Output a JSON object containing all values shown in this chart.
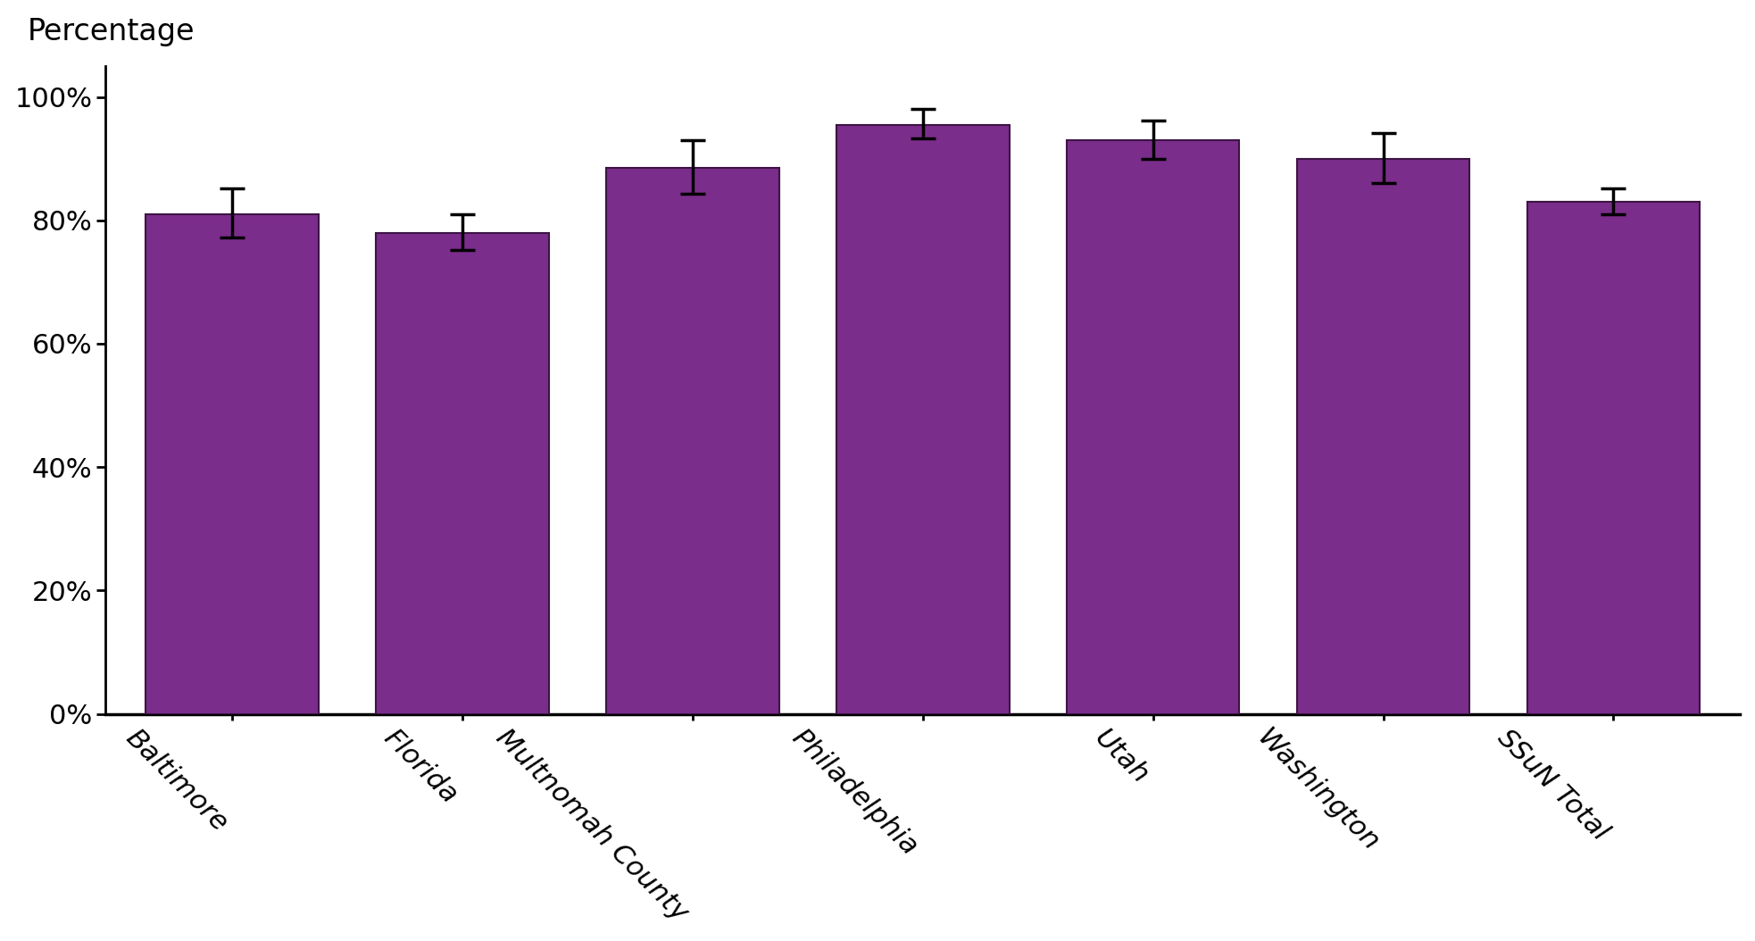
{
  "categories": [
    "Baltimore",
    "Florida",
    "Multnomah County",
    "Philadelphia",
    "Utah",
    "Washington",
    "SSuN Total"
  ],
  "values": [
    0.81,
    0.78,
    0.885,
    0.955,
    0.93,
    0.9,
    0.83
  ],
  "errors_low": [
    0.038,
    0.028,
    0.042,
    0.022,
    0.03,
    0.04,
    0.02
  ],
  "errors_high": [
    0.042,
    0.03,
    0.045,
    0.025,
    0.032,
    0.042,
    0.022
  ],
  "bar_color": "#7B2D8B",
  "bar_edge_color": "#3D1445",
  "error_color": "black",
  "background_color": "#FFFFFF",
  "ylabel": "Percentage",
  "ylim": [
    0,
    1.05
  ],
  "yticks": [
    0.0,
    0.2,
    0.4,
    0.6,
    0.8,
    1.0
  ],
  "ytick_labels": [
    "0%",
    "20%",
    "40%",
    "60%",
    "80%",
    "100%"
  ],
  "bar_width": 0.75,
  "tick_fontsize": 22,
  "label_fontsize": 24,
  "xlabel_rotation": -45,
  "xlabel_ha": "right"
}
